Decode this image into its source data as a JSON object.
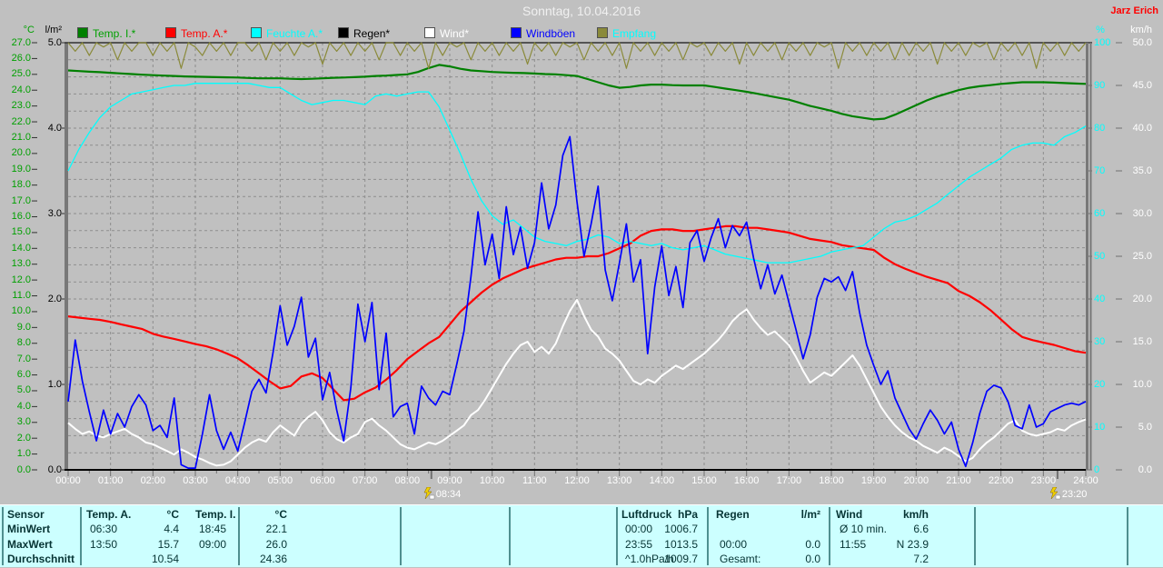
{
  "window": {
    "title": "Sonntag, 10.04.2016",
    "author": "Jarz Erich"
  },
  "legend": [
    {
      "label": "Temp. I.*",
      "swatch": "#008000",
      "text_color": "#00a000"
    },
    {
      "label": "Temp. A.*",
      "swatch": "#ff0000",
      "text_color": "#ff0000"
    },
    {
      "label": "Feuchte A.*",
      "swatch": "#00ffff",
      "text_color": "#00ffff"
    },
    {
      "label": "Regen*",
      "swatch": "#000000",
      "text_color": "#000000"
    },
    {
      "label": "Wind*",
      "swatch": "#ffffff",
      "text_color": "#ffffff"
    },
    {
      "label": "Windböen",
      "swatch": "#0000ff",
      "text_color": "#0000ff"
    },
    {
      "label": "Empfang",
      "swatch": "#8a8a3a",
      "text_color": "#00ffff"
    }
  ],
  "axes": {
    "temp_c": {
      "header": "°C",
      "color": "#00a000",
      "range": [
        0,
        27
      ],
      "ticks": [
        "27.0",
        "26.0",
        "25.0",
        "24.0",
        "23.0",
        "22.0",
        "21.0",
        "20.0",
        "19.0",
        "18.0",
        "17.0",
        "16.0",
        "15.0",
        "14.0",
        "13.0",
        "12.0",
        "11.0",
        "10.0",
        "9.0",
        "8.0",
        "7.0",
        "6.0",
        "5.0",
        "4.0",
        "3.0",
        "2.0",
        "1.0",
        "0.0"
      ]
    },
    "rain_lm2": {
      "header": "l/m²",
      "color": "#000000",
      "range": [
        0,
        5
      ],
      "ticks": [
        "5.0",
        "4.0",
        "3.0",
        "2.0",
        "1.0",
        "0.0"
      ]
    },
    "humidity_pct": {
      "header": "%",
      "color": "#00ffff",
      "range": [
        0,
        100
      ],
      "ticks": [
        "100",
        "90",
        "80",
        "70",
        "60",
        "50",
        "40",
        "30",
        "20",
        "10",
        "0"
      ]
    },
    "wind_kmh": {
      "header": "km/h",
      "color": "#ffffff",
      "range": [
        0,
        50
      ],
      "ticks": [
        "50.0",
        "45.0",
        "40.0",
        "35.0",
        "30.0",
        "25.0",
        "20.0",
        "15.0",
        "10.0",
        "5.0",
        "0.0"
      ]
    },
    "time": {
      "ticks": [
        "00:00",
        "01:00",
        "02:00",
        "03:00",
        "04:00",
        "05:00",
        "06:00",
        "07:00",
        "08:00",
        "09:00",
        "10:00",
        "11:00",
        "12:00",
        "13:00",
        "14:00",
        "15:00",
        "16:00",
        "17:00",
        "18:00",
        "19:00",
        "20:00",
        "21:00",
        "22:00",
        "23:00",
        "24:00"
      ]
    }
  },
  "chart_data": {
    "type": "line",
    "title": "Sonntag, 10.04.2016",
    "x_range_hours": [
      0,
      24
    ],
    "grid": {
      "vertical_every_hours": 1,
      "horizontal_lines": 24
    },
    "markers": [
      {
        "label": "08:34"
      },
      {
        "label": "23:20"
      }
    ],
    "series": [
      {
        "name": "Regen*",
        "axis": "rain_lm2",
        "color": "#000000",
        "width": 1,
        "interval_min": 60,
        "values": [
          0,
          0,
          0,
          0,
          0,
          0,
          0,
          0,
          0,
          0,
          0,
          0,
          0,
          0,
          0,
          0,
          0,
          0,
          0,
          0,
          0,
          0,
          0,
          0,
          0
        ]
      },
      {
        "name": "Temp. I.*",
        "axis": "temp_c",
        "color": "#008000",
        "width": 2.2,
        "interval_min": 15,
        "values": [
          25.25,
          25.21,
          25.17,
          25.14,
          25.1,
          25.06,
          25.02,
          24.98,
          24.95,
          24.92,
          24.9,
          24.87,
          24.85,
          24.84,
          24.82,
          24.81,
          24.8,
          24.77,
          24.75,
          24.75,
          24.75,
          24.72,
          24.7,
          24.72,
          24.75,
          24.78,
          24.8,
          24.82,
          24.85,
          24.9,
          24.92,
          24.96,
          25.0,
          25.15,
          25.4,
          25.6,
          25.5,
          25.35,
          25.25,
          25.2,
          25.15,
          25.12,
          25.1,
          25.08,
          25.05,
          25.02,
          25.0,
          24.95,
          24.9,
          24.7,
          24.5,
          24.3,
          24.15,
          24.2,
          24.3,
          24.35,
          24.35,
          24.32,
          24.3,
          24.3,
          24.3,
          24.2,
          24.1,
          24.0,
          23.9,
          23.78,
          23.65,
          23.52,
          23.4,
          23.2,
          23.0,
          22.85,
          22.7,
          22.5,
          22.35,
          22.25,
          22.15,
          22.2,
          22.45,
          22.75,
          23.05,
          23.35,
          23.6,
          23.8,
          24.0,
          24.15,
          24.25,
          24.32,
          24.4,
          24.45,
          24.5,
          24.5,
          24.5,
          24.48,
          24.45,
          24.42,
          24.4
        ]
      },
      {
        "name": "Temp. A.*",
        "axis": "temp_c",
        "color": "#ff0000",
        "width": 2.2,
        "interval_min": 15,
        "values": [
          9.7,
          9.62,
          9.55,
          9.48,
          9.35,
          9.2,
          9.05,
          8.9,
          8.6,
          8.42,
          8.28,
          8.12,
          7.95,
          7.82,
          7.62,
          7.35,
          7.05,
          6.6,
          6.1,
          5.6,
          5.15,
          5.3,
          5.9,
          6.1,
          5.8,
          5.1,
          4.4,
          4.5,
          4.9,
          5.2,
          5.7,
          6.3,
          7.0,
          7.5,
          8.0,
          8.4,
          9.2,
          10.0,
          10.6,
          11.2,
          11.7,
          12.1,
          12.4,
          12.7,
          12.9,
          13.1,
          13.3,
          13.4,
          13.4,
          13.5,
          13.5,
          13.7,
          14.0,
          14.3,
          14.8,
          15.1,
          15.2,
          15.2,
          15.1,
          15.1,
          15.2,
          15.3,
          15.4,
          15.4,
          15.3,
          15.3,
          15.2,
          15.1,
          15.0,
          14.8,
          14.6,
          14.5,
          14.4,
          14.2,
          14.1,
          14.0,
          13.9,
          13.4,
          13.0,
          12.7,
          12.45,
          12.2,
          12.0,
          11.8,
          11.3,
          11.0,
          10.6,
          10.1,
          9.5,
          8.9,
          8.4,
          8.2,
          8.05,
          7.9,
          7.7,
          7.5,
          7.4
        ]
      },
      {
        "name": "Feuchte A.*",
        "axis": "humidity_pct",
        "color": "#00ffff",
        "width": 1.3,
        "interval_min": 15,
        "values": [
          70,
          75,
          79,
          82.5,
          85,
          86.5,
          88,
          88.5,
          89,
          89.5,
          90,
          90,
          90.5,
          90.5,
          90.5,
          90.5,
          90.5,
          90.5,
          90,
          89.5,
          89.5,
          88,
          86.5,
          85.5,
          86,
          86.5,
          86.5,
          86,
          85.5,
          87.5,
          88,
          87.5,
          88,
          88.5,
          88.5,
          85,
          79.5,
          74,
          68,
          63,
          59.5,
          57.5,
          58.5,
          56.5,
          54.5,
          53.5,
          53,
          52.5,
          53.5,
          54,
          55,
          54.5,
          53,
          53.5,
          53,
          52.5,
          53,
          52,
          51.5,
          52,
          52.5,
          51.5,
          50.5,
          50,
          49.5,
          49,
          48.5,
          48.5,
          48.5,
          49,
          49.5,
          50,
          51,
          51.5,
          52,
          52.5,
          54.5,
          56.5,
          58,
          58.5,
          59.5,
          61,
          62.5,
          64.5,
          66.5,
          68.5,
          70,
          71.5,
          73,
          75,
          76,
          76.5,
          76.5,
          76,
          78,
          79,
          80.5
        ]
      },
      {
        "name": "Wind*",
        "axis": "wind_kmh",
        "color": "#ffffff",
        "width": 2,
        "interval_min": 10,
        "values": [
          5.5,
          4.8,
          4.2,
          4.5,
          4.0,
          3.8,
          4.2,
          4.5,
          4.8,
          4.2,
          3.8,
          3.2,
          3.0,
          2.6,
          2.2,
          1.8,
          2.4,
          2.0,
          1.5,
          1.2,
          0.8,
          0.5,
          0.6,
          1.0,
          1.8,
          2.6,
          3.2,
          3.6,
          3.3,
          4.4,
          5.2,
          4.6,
          4.0,
          5.4,
          6.2,
          6.8,
          5.8,
          4.4,
          3.6,
          3.2,
          3.8,
          4.2,
          5.6,
          6.0,
          5.2,
          4.6,
          3.8,
          3.0,
          2.6,
          2.4,
          2.8,
          3.2,
          3.0,
          3.4,
          4.0,
          4.6,
          5.2,
          6.4,
          7.0,
          8.2,
          9.6,
          11.0,
          12.4,
          13.6,
          14.6,
          15.0,
          13.8,
          14.4,
          13.6,
          14.8,
          16.8,
          18.6,
          19.9,
          18.0,
          16.4,
          15.6,
          14.2,
          13.6,
          12.8,
          11.6,
          10.4,
          10.0,
          10.6,
          10.2,
          11.0,
          11.6,
          12.2,
          11.8,
          12.4,
          13.0,
          13.6,
          14.4,
          15.2,
          16.2,
          17.4,
          18.2,
          18.8,
          17.6,
          16.6,
          15.8,
          16.2,
          15.4,
          14.6,
          13.2,
          11.6,
          10.2,
          10.8,
          11.4,
          11.0,
          11.8,
          12.6,
          13.4,
          12.2,
          10.6,
          9.0,
          7.4,
          6.2,
          5.2,
          4.4,
          3.8,
          3.4,
          2.8,
          2.4,
          2.0,
          2.6,
          2.2,
          1.6,
          1.0,
          1.4,
          2.4,
          3.2,
          3.8,
          4.6,
          5.4,
          5.8,
          4.6,
          4.2,
          4.0,
          4.2,
          4.4,
          4.8,
          4.6,
          5.2,
          5.6,
          5.9
        ]
      },
      {
        "name": "Windböen",
        "axis": "wind_kmh",
        "color": "#0000ff",
        "width": 1.7,
        "interval_min": 10,
        "values": [
          8.0,
          15.2,
          10.4,
          6.8,
          3.4,
          7.0,
          4.2,
          6.6,
          5.0,
          7.4,
          8.8,
          7.6,
          4.6,
          5.2,
          3.8,
          8.4,
          0.6,
          0.2,
          0.2,
          4.2,
          8.8,
          4.6,
          2.4,
          4.4,
          2.2,
          5.6,
          9.2,
          10.6,
          9.0,
          13.8,
          19.2,
          14.6,
          16.8,
          20.2,
          13.2,
          15.4,
          8.2,
          11.4,
          7.0,
          3.4,
          9.6,
          19.4,
          15.0,
          19.6,
          9.4,
          16.0,
          6.2,
          7.4,
          7.8,
          4.2,
          9.8,
          8.4,
          7.6,
          9.2,
          8.8,
          12.4,
          16.2,
          22.6,
          30.2,
          24.0,
          27.6,
          22.4,
          30.8,
          25.2,
          28.4,
          23.6,
          26.6,
          33.6,
          28.2,
          31.0,
          36.8,
          39.0,
          31.4,
          25.0,
          28.8,
          33.2,
          23.4,
          19.8,
          24.2,
          28.8,
          22.0,
          24.6,
          13.6,
          21.4,
          26.2,
          20.4,
          23.8,
          19.0,
          26.6,
          28.0,
          24.4,
          27.2,
          29.4,
          26.0,
          28.6,
          27.4,
          29.0,
          24.8,
          21.2,
          24.0,
          20.6,
          22.8,
          19.6,
          16.4,
          13.0,
          15.8,
          20.2,
          22.4,
          22.0,
          22.6,
          21.0,
          23.2,
          18.4,
          14.6,
          12.2,
          10.0,
          11.6,
          8.4,
          6.6,
          4.8,
          3.6,
          5.4,
          7.0,
          5.8,
          4.2,
          5.6,
          2.4,
          0.4,
          3.2,
          6.6,
          9.2,
          9.9,
          9.6,
          8.0,
          5.2,
          4.8,
          7.6,
          5.0,
          5.4,
          6.8,
          7.2,
          7.6,
          7.8,
          7.6,
          8.0
        ]
      },
      {
        "name": "Empfang",
        "axis": "humidity_pct",
        "color": "#8a8a3a",
        "width": 1.2,
        "interval_min": 10,
        "values": [
          100,
          98,
          100,
          97,
          100,
          99,
          100,
          96,
          100,
          98,
          100,
          100,
          97,
          100,
          98,
          100,
          94,
          100,
          99,
          97,
          100,
          98,
          100,
          97,
          100,
          100,
          98,
          100,
          96,
          100,
          98,
          100,
          97,
          100,
          99,
          100,
          95,
          100,
          98,
          100,
          97,
          100,
          98,
          100,
          96,
          100,
          100,
          97,
          100,
          98,
          100,
          94,
          100,
          97,
          100,
          99,
          100,
          96,
          100,
          98,
          100,
          97,
          100,
          98,
          100,
          95,
          100,
          98,
          100,
          97,
          100,
          99,
          100,
          96,
          100,
          98,
          100,
          97,
          100,
          94,
          100,
          98,
          100,
          97,
          100,
          98,
          100,
          96,
          100,
          99,
          100,
          97,
          100,
          98,
          100,
          95,
          100,
          97,
          100,
          98,
          100,
          96,
          100,
          98,
          100,
          97,
          100,
          99,
          100,
          94,
          100,
          98,
          100,
          97,
          100,
          98,
          100,
          96,
          100,
          97,
          100,
          98,
          100,
          95,
          100,
          98,
          100,
          97,
          100,
          99,
          100,
          96,
          100,
          98,
          100,
          97,
          100,
          94,
          100,
          98,
          100,
          97,
          100,
          98,
          100
        ]
      }
    ]
  },
  "summary": {
    "row_labels": [
      "Sensor",
      "MinWert",
      "MaxWert",
      "Durchschnitt"
    ],
    "columns": [
      {
        "name": "Temp. A.",
        "unit": "°C",
        "rows": [
          [
            "06:30",
            "4.4"
          ],
          [
            "13:50",
            "15.7"
          ],
          [
            "",
            "10.54"
          ]
        ]
      },
      {
        "name": "Temp. I.",
        "unit": "°C",
        "rows": [
          [
            "18:45",
            "22.1"
          ],
          [
            "09:00",
            "26.0"
          ],
          [
            "",
            "24.36"
          ]
        ]
      },
      {
        "name": "Luftdruck",
        "unit": "hPa",
        "rows": [
          [
            "00:00",
            "1006.7"
          ],
          [
            "23:55",
            "1013.5"
          ],
          [
            "^1.0hPa/h",
            "1009.7"
          ]
        ]
      },
      {
        "name": "Regen",
        "unit": "l/m²",
        "rows": [
          [
            "",
            ""
          ],
          [
            "00:00",
            "0.0"
          ],
          [
            "Gesamt:",
            "0.0"
          ]
        ]
      },
      {
        "name": "Wind",
        "unit": "km/h",
        "rows": [
          [
            "Ø 10 min.",
            "6.6"
          ],
          [
            "11:55",
            "N 23.9"
          ],
          [
            "",
            "7.2"
          ]
        ]
      }
    ]
  }
}
